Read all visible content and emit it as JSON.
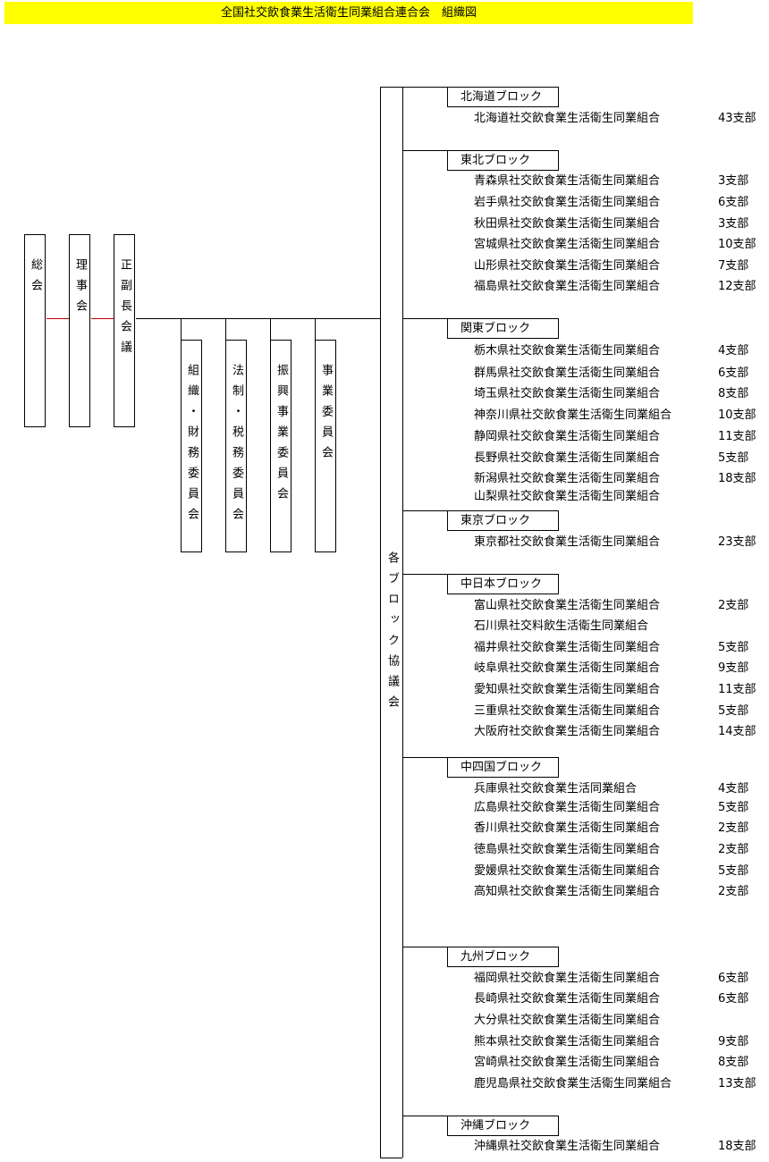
{
  "title": "全国社交飲食業生活衛生同業組合連合会　組織図",
  "top_bodies": [
    {
      "label": "総会"
    },
    {
      "label": "理事会"
    },
    {
      "label": "正副長会議"
    }
  ],
  "committees": [
    {
      "label": "組織・財務委員会"
    },
    {
      "label": "法制・税務委員会"
    },
    {
      "label": "振興事業委員会"
    },
    {
      "label": "事業委員会"
    }
  ],
  "block_council": "各ブロック協議会",
  "blocks": [
    {
      "name": "北海道ブロック",
      "members": [
        {
          "name": "北海道社交飲食業生活衛生同業組合",
          "count": "43支部"
        }
      ]
    },
    {
      "name": "東北ブロック",
      "members": [
        {
          "name": "青森県社交飲食業生活衛生同業組合",
          "count": "3支部"
        },
        {
          "name": "岩手県社交飲食業生活衛生同業組合",
          "count": "6支部"
        },
        {
          "name": "秋田県社交飲食業生活衛生同業組合",
          "count": "3支部"
        },
        {
          "name": "宮城県社交飲食業生活衛生同業組合",
          "count": "10支部"
        },
        {
          "name": "山形県社交飲食業生活衛生同業組合",
          "count": "7支部"
        },
        {
          "name": "福島県社交飲食業生活衛生同業組合",
          "count": "12支部"
        }
      ]
    },
    {
      "name": "関東ブロック",
      "members": [
        {
          "name": "栃木県社交飲食業生活衛生同業組合",
          "count": "4支部"
        },
        {
          "name": "群馬県社交飲食業生活衛生同業組合",
          "count": "6支部"
        },
        {
          "name": "埼玉県社交飲食業生活衛生同業組合",
          "count": "8支部"
        },
        {
          "name": "神奈川県社交飲食業生活衛生同業組合",
          "count": "10支部"
        },
        {
          "name": "静岡県社交飲食業生活衛生同業組合",
          "count": "11支部"
        },
        {
          "name": "長野県社交飲食業生活衛生同業組合",
          "count": "5支部"
        },
        {
          "name": "新潟県社交飲食業生活衛生同業組合",
          "count": "18支部"
        },
        {
          "name": "山梨県社交飲食業生活衛生同業組合",
          "count": ""
        }
      ]
    },
    {
      "name": "東京ブロック",
      "members": [
        {
          "name": "東京都社交飲食業生活衛生同業組合",
          "count": "23支部"
        }
      ]
    },
    {
      "name": "中日本ブロック",
      "members": [
        {
          "name": "富山県社交飲食業生活衛生同業組合",
          "count": "2支部"
        },
        {
          "name": "石川県社交料飲生活衛生同業組合",
          "count": ""
        },
        {
          "name": "福井県社交飲食業生活衛生同業組合",
          "count": "5支部"
        },
        {
          "name": "岐阜県社交飲食業生活衛生同業組合",
          "count": "9支部"
        },
        {
          "name": "愛知県社交飲食業生活衛生同業組合",
          "count": "11支部"
        },
        {
          "name": "三重県社交飲食業生活衛生同業組合",
          "count": "5支部"
        },
        {
          "name": "大阪府社交飲食業生活衛生同業組合",
          "count": "14支部"
        }
      ]
    },
    {
      "name": "中四国ブロック",
      "members": [
        {
          "name": "兵庫県社交飲食業生活同業組合",
          "count": "4支部"
        },
        {
          "name": "広島県社交飲食業生活衛生同業組合",
          "count": "5支部"
        },
        {
          "name": "香川県社交飲食業生活衛生同業組合",
          "count": "2支部"
        },
        {
          "name": "徳島県社交飲食業生活衛生同業組合",
          "count": "2支部"
        },
        {
          "name": "愛媛県社交飲食業生活衛生同業組合",
          "count": "5支部"
        },
        {
          "name": "高知県社交飲食業生活衛生同業組合",
          "count": "2支部"
        }
      ]
    },
    {
      "name": "九州ブロック",
      "members": [
        {
          "name": "福岡県社交飲食業生活衛生同業組合",
          "count": "6支部"
        },
        {
          "name": "長崎県社交飲食業生活衛生同業組合",
          "count": "6支部"
        },
        {
          "name": "大分県社交飲食業生活衛生同業組合",
          "count": ""
        },
        {
          "name": "熊本県社交飲食業生活衛生同業組合",
          "count": "9支部"
        },
        {
          "name": "宮崎県社交飲食業生活衛生同業組合",
          "count": "8支部"
        },
        {
          "name": "鹿児島県社交飲食業生活衛生同業組合",
          "count": "13支部"
        }
      ]
    },
    {
      "name": "沖縄ブロック",
      "members": [
        {
          "name": "沖縄県社交飲食業生活衛生同業組合",
          "count": "18支部"
        }
      ]
    }
  ],
  "colors": {
    "title_bg": "#ffff00",
    "link_line": "#c00000"
  }
}
